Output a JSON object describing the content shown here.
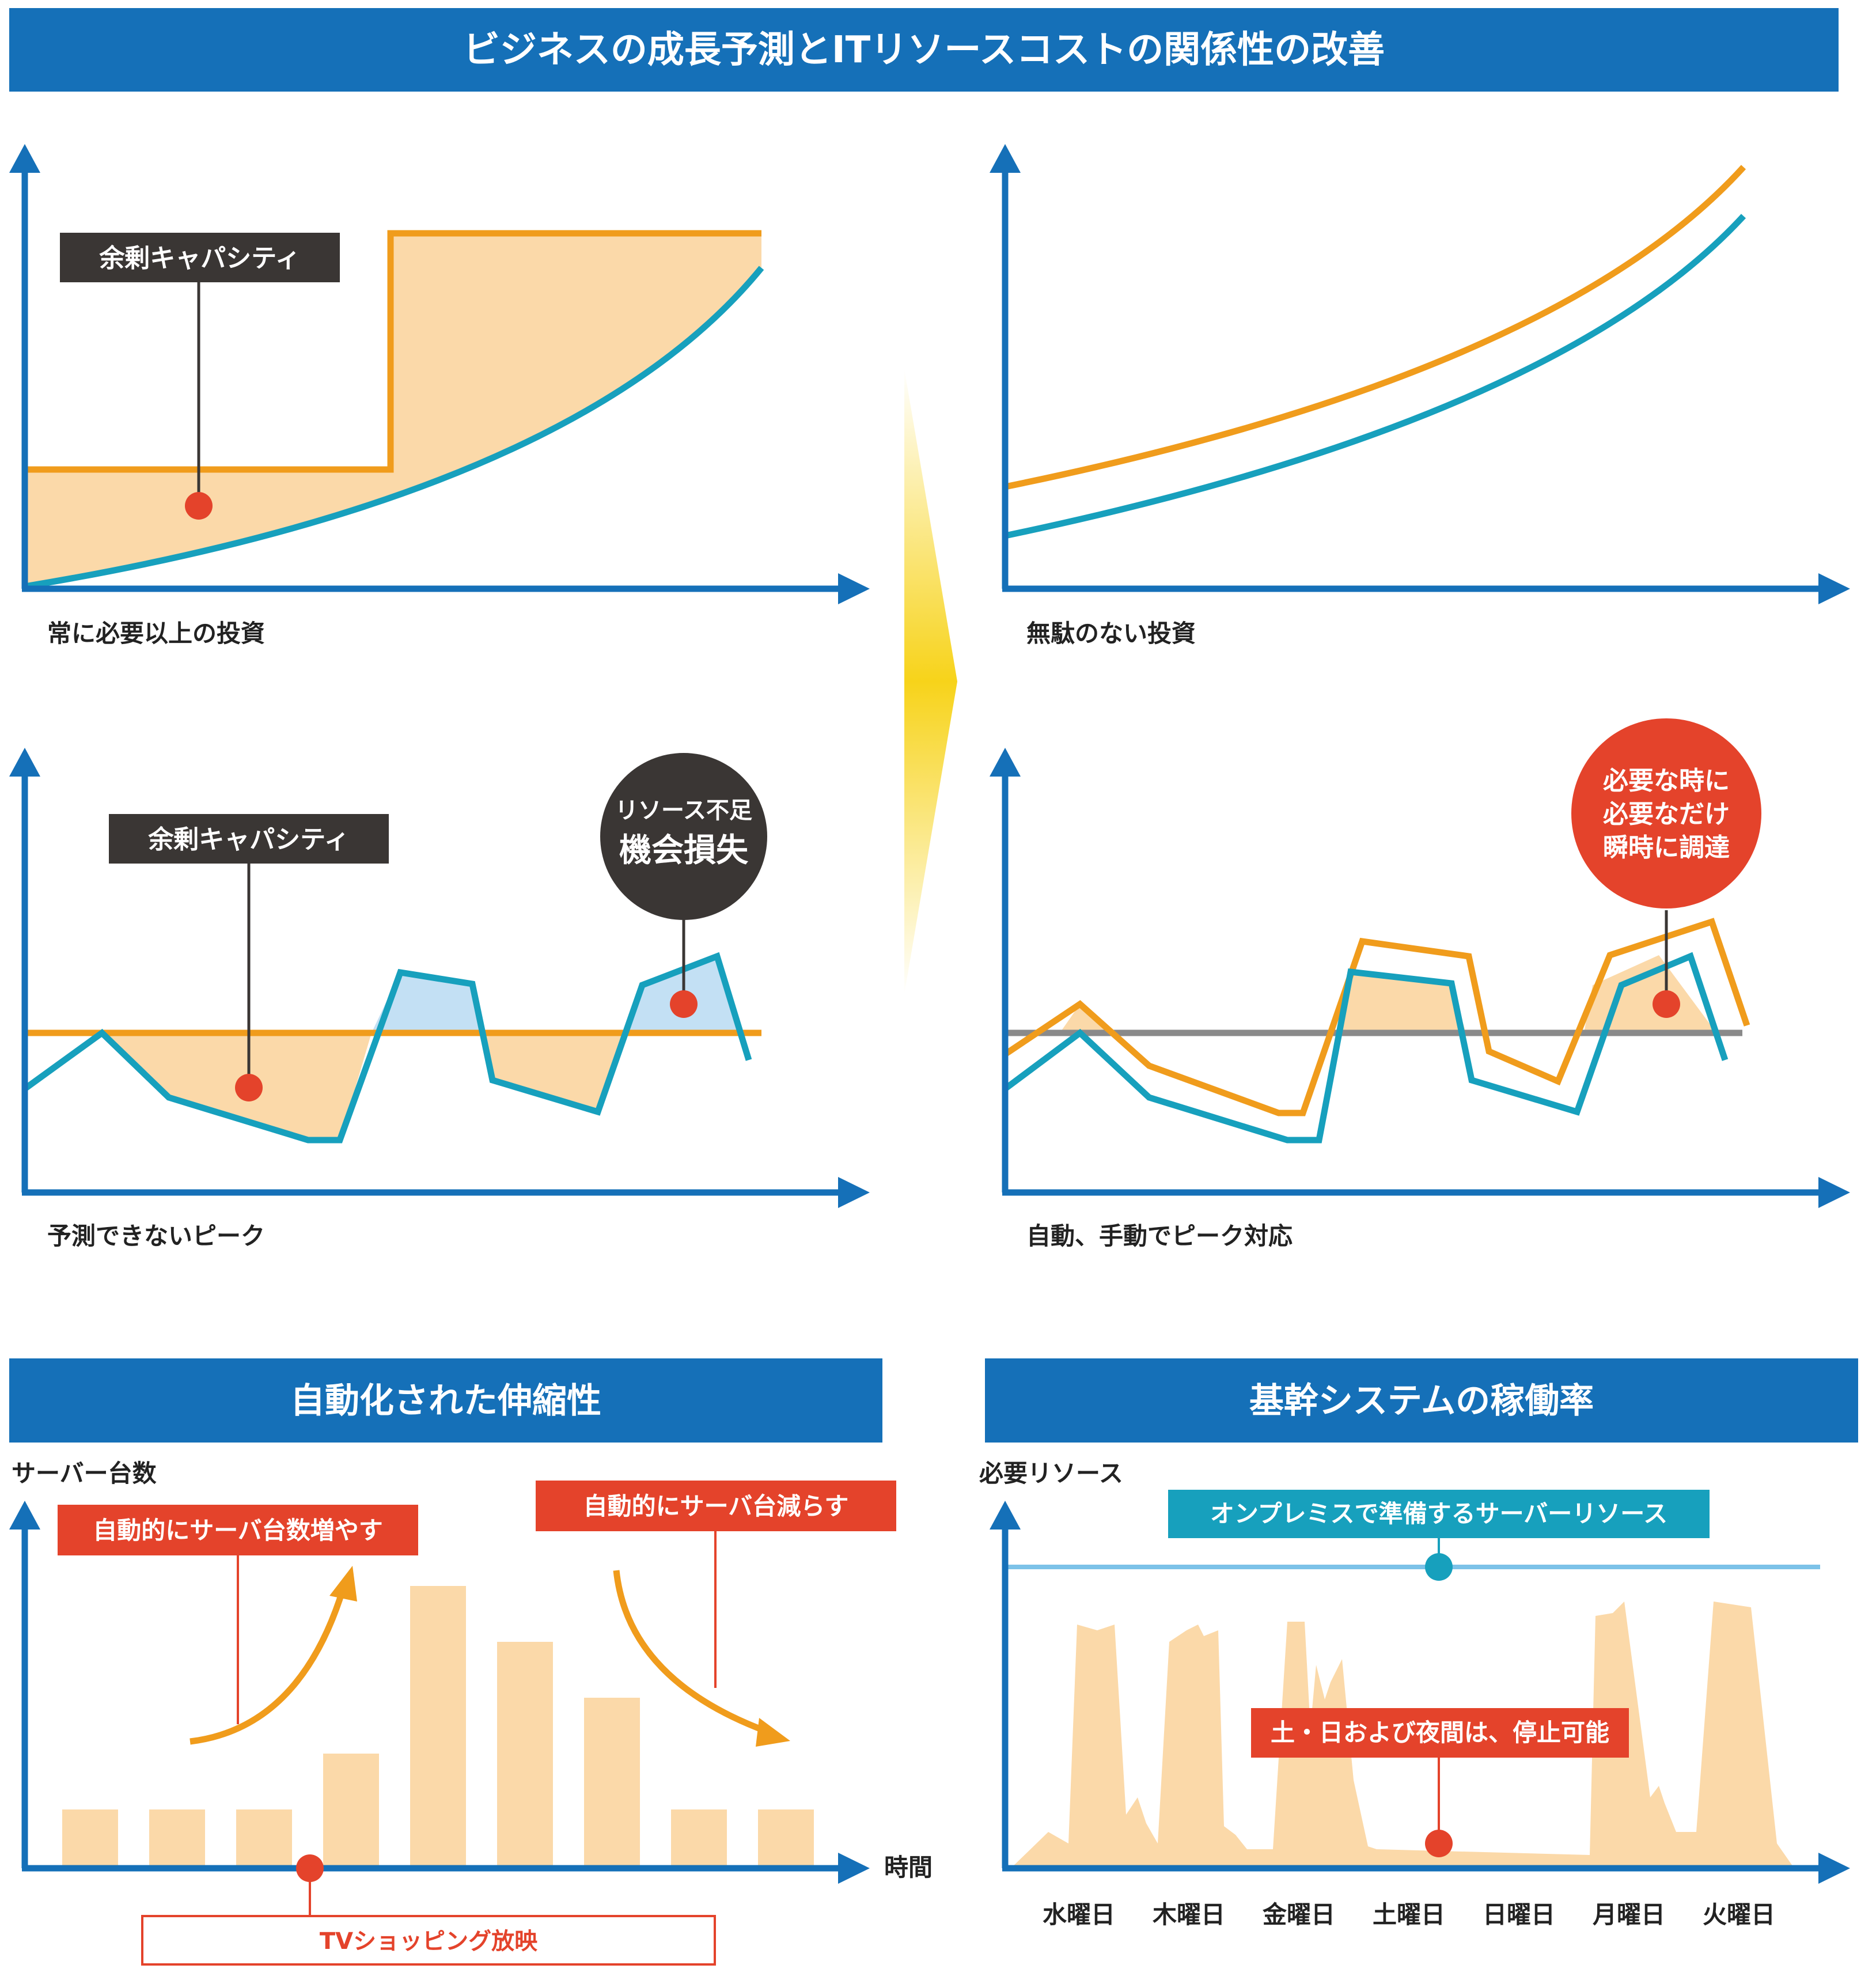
{
  "title": "ビジネスの成長予測とITリソースコストの関係性の改善",
  "colors": {
    "banner": "#1570b8",
    "axis": "#1570b8",
    "orange": "#f09c1c",
    "teal": "#17a0bd",
    "fill_orange": "#fbd9a9",
    "fill_blue": "#c3e0f4",
    "dark": "#3a3634",
    "red": "#e4432b",
    "gray": "#8a8a8a",
    "bar": "#fbd9a9",
    "light_blue": "#7cc2e8",
    "arrow_yellow": "#f7d31a"
  },
  "panels": {
    "top_left": {
      "caption": "常に必要以上の投資",
      "callout": "余剰キャパシティ"
    },
    "top_right": {
      "caption": "無駄のない投資"
    },
    "mid_left": {
      "caption": "予測できないピーク",
      "callout": "余剰キャパシティ",
      "bubble_line1": "リソース不足",
      "bubble_line2": "機会損失"
    },
    "mid_right": {
      "caption": "自動、手動でピーク対応",
      "bubble_line1": "必要な時に",
      "bubble_line2": "必要なだけ",
      "bubble_line3": "瞬時に調達"
    }
  },
  "bottom_left": {
    "banner": "自動化された伸縮性",
    "y_label": "サーバー台数",
    "x_label": "時間",
    "label_up": "自動的にサーバ台数増やす",
    "label_down": "自動的にサーバ台減らす",
    "event_label": "TVショッピング放映"
  },
  "bottom_right": {
    "banner": "基幹システムの稼働率",
    "y_label": "必要リソース",
    "onprem_label": "オンプレミスで準備するサーバーリソース",
    "stop_label": "土・日および夜間は、停止可能"
  },
  "chart_data": [
    {
      "type": "bar",
      "categories": [
        "",
        "",
        "",
        "",
        "",
        "",
        "",
        "",
        ""
      ],
      "values": [
        1,
        1,
        1,
        2,
        5,
        4,
        3,
        1,
        1
      ],
      "xlabel": "時間",
      "ylabel": "サーバー台数"
    },
    {
      "type": "area",
      "categories": [
        "水曜日",
        "木曜日",
        "金曜日",
        "土曜日",
        "日曜日",
        "月曜日",
        "火曜日"
      ],
      "xlabel": "",
      "ylabel": "必要リソース"
    }
  ]
}
